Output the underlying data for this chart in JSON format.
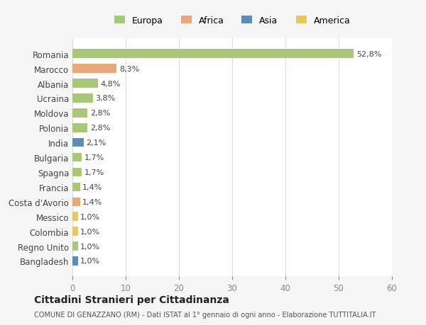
{
  "countries": [
    "Romania",
    "Marocco",
    "Albania",
    "Ucraina",
    "Moldova",
    "Polonia",
    "India",
    "Bulgaria",
    "Spagna",
    "Francia",
    "Costa d'Avorio",
    "Messico",
    "Colombia",
    "Regno Unito",
    "Bangladesh"
  ],
  "values": [
    52.8,
    8.3,
    4.8,
    3.8,
    2.8,
    2.8,
    2.1,
    1.7,
    1.7,
    1.4,
    1.4,
    1.0,
    1.0,
    1.0,
    1.0
  ],
  "labels": [
    "52,8%",
    "8,3%",
    "4,8%",
    "3,8%",
    "2,8%",
    "2,8%",
    "2,1%",
    "1,7%",
    "1,7%",
    "1,4%",
    "1,4%",
    "1,0%",
    "1,0%",
    "1,0%",
    "1,0%"
  ],
  "colors": [
    "#a8c878",
    "#e8a87c",
    "#a8c878",
    "#a8c878",
    "#a8c878",
    "#a8c878",
    "#5b8db8",
    "#a8c878",
    "#a8c878",
    "#a8c878",
    "#e8a87c",
    "#e8c85a",
    "#e8c85a",
    "#a8c878",
    "#5b8db8"
  ],
  "legend_labels": [
    "Europa",
    "Africa",
    "Asia",
    "America"
  ],
  "legend_colors": [
    "#a8c878",
    "#e8a87c",
    "#5b8db8",
    "#e8c85a"
  ],
  "xlim": [
    0,
    60
  ],
  "xticks": [
    0,
    10,
    20,
    30,
    40,
    50,
    60
  ],
  "title": "Cittadini Stranieri per Cittadinanza",
  "subtitle": "COMUNE DI GENAZZANO (RM) - Dati ISTAT al 1° gennaio di ogni anno - Elaborazione TUTTITALIA.IT",
  "background_color": "#f5f5f5",
  "plot_background": "#ffffff",
  "grid_color": "#dddddd"
}
